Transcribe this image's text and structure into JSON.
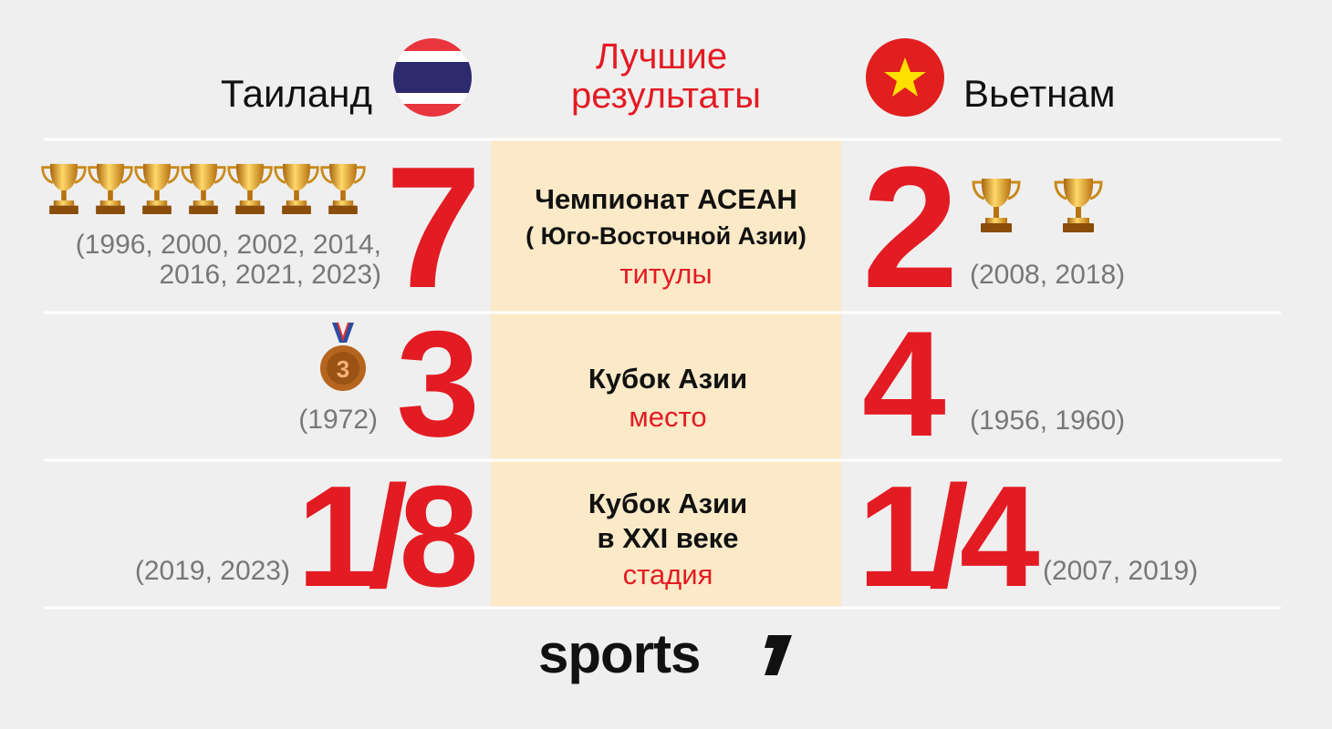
{
  "header": {
    "left_team": "Таиланд",
    "title_lines": [
      "Лучшие",
      "результаты"
    ],
    "right_team": "Вьетнам"
  },
  "rows": [
    {
      "left": {
        "value": 7,
        "years": [
          "(1996, 2000, 2002, 2014,",
          "2016, 2021, 2023)"
        ]
      },
      "center": {
        "lines": [
          "Чемпионат АСЕАН",
          "( Юго-Восточной Азии)"
        ],
        "caption": "титулы"
      },
      "right": {
        "value": 2,
        "years": [
          "(2008, 2018)"
        ]
      }
    },
    {
      "left": {
        "value": 3,
        "years": [
          "(1972)"
        ]
      },
      "center": {
        "lines": [
          "Кубок Азии"
        ],
        "caption": "место"
      },
      "right": {
        "value": 4,
        "years": [
          "(1956, 1960)"
        ]
      }
    },
    {
      "left": {
        "value": "1/8",
        "years": [
          "(2019, 2023)"
        ]
      },
      "center": {
        "lines": [
          "Кубок Азии",
          "в XXI веке"
        ],
        "caption": "стадия"
      },
      "right": {
        "value": "1/4",
        "years": [
          "(2007, 2019)"
        ]
      }
    }
  ],
  "footer": {
    "logo": "sports"
  }
}
